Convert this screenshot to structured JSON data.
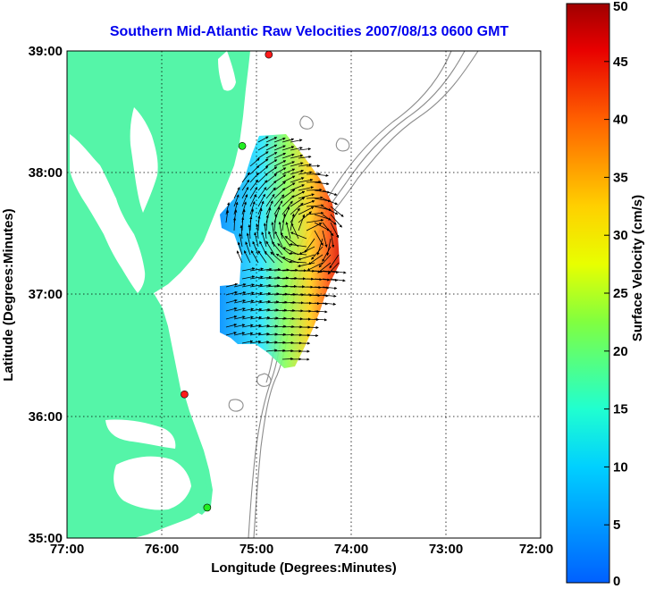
{
  "map": {
    "title": "Southern Mid-Atlantic Raw Velocities 2007/08/13 0600 GMT",
    "x_label": "Longitude (Degrees:Minutes)",
    "y_label": "Latitude (Degrees:Minutes)",
    "x_ticks": [
      "77:00",
      "76:00",
      "75:00",
      "74:00",
      "73:00",
      "72:00"
    ],
    "y_ticks": [
      "39:00",
      "38:00",
      "37:00",
      "36:00",
      "35:00"
    ],
    "extent": {
      "lon": [
        -77,
        -72
      ],
      "lat": [
        35,
        39
      ]
    },
    "colors": {
      "land": "#55f5a8",
      "water": "#ffffff",
      "frame": "#000000",
      "bathymetry": "#8c8c8c",
      "grid": "#000000"
    },
    "sites": [
      {
        "status": "red",
        "lon": -74.87,
        "lat": 38.97
      },
      {
        "status": "green",
        "lon": -75.15,
        "lat": 38.22
      },
      {
        "status": "red",
        "lon": -75.76,
        "lat": 36.18
      },
      {
        "status": "green",
        "lon": -75.52,
        "lat": 35.25
      }
    ]
  },
  "colorbar": {
    "label": "Surface Velocity (cm/s)",
    "ticks": [
      "0",
      "5",
      "10",
      "15",
      "20",
      "25",
      "30",
      "35",
      "40",
      "45",
      "50"
    ],
    "min": 0,
    "max": 50
  }
}
